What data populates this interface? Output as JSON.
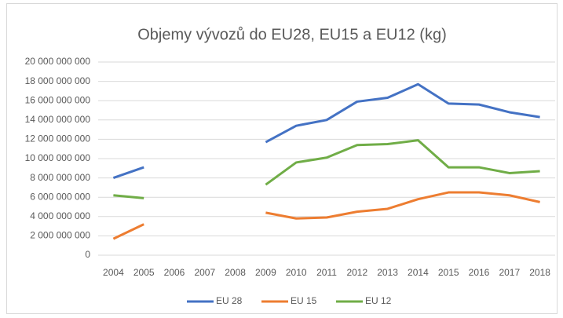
{
  "chart_data": {
    "type": "line",
    "title": "Objemy vývozů do EU28, EU15 a EU12 (kg)",
    "categories": [
      "2004",
      "2005",
      "2006",
      "2007",
      "2008",
      "2009",
      "2010",
      "2011",
      "2012",
      "2013",
      "2014",
      "2015",
      "2016",
      "2017",
      "2018"
    ],
    "series": [
      {
        "name": "EU 28",
        "color": "#4472c4",
        "values": [
          8000000000,
          9100000000,
          null,
          null,
          null,
          11700000000,
          13400000000,
          14000000000,
          15900000000,
          16300000000,
          17700000000,
          15700000000,
          15600000000,
          14800000000,
          14300000000
        ]
      },
      {
        "name": "EU 15",
        "color": "#ed7d31",
        "values": [
          1700000000,
          3200000000,
          null,
          null,
          null,
          4400000000,
          3800000000,
          3900000000,
          4500000000,
          4800000000,
          5800000000,
          6500000000,
          6500000000,
          6200000000,
          5500000000
        ]
      },
      {
        "name": "EU 12",
        "color": "#70ad47",
        "values": [
          6200000000,
          5900000000,
          null,
          null,
          null,
          7300000000,
          9600000000,
          10100000000,
          11400000000,
          11500000000,
          11900000000,
          9100000000,
          9100000000,
          8500000000,
          8700000000
        ]
      }
    ],
    "ylim": [
      0,
      20000000000
    ],
    "yticks": [
      0,
      {
        "value": 2000000000,
        "label": "2 000 000 000"
      },
      {
        "value": 4000000000,
        "label": "4 000 000 000"
      },
      {
        "value": 6000000000,
        "label": "6 000 000 000"
      },
      {
        "value": 8000000000,
        "label": "8 000 000 000"
      },
      {
        "value": 10000000000,
        "label": "10 000 000 000"
      },
      {
        "value": 12000000000,
        "label": "12 000 000 000"
      },
      {
        "value": 14000000000,
        "label": "14 000 000 000"
      },
      {
        "value": 16000000000,
        "label": "16 000 000 000"
      },
      {
        "value": 18000000000,
        "label": "18 000 000 000"
      },
      {
        "value": 20000000000,
        "label": "20 000 000 000"
      }
    ],
    "grid": true,
    "legend": "bottom"
  }
}
